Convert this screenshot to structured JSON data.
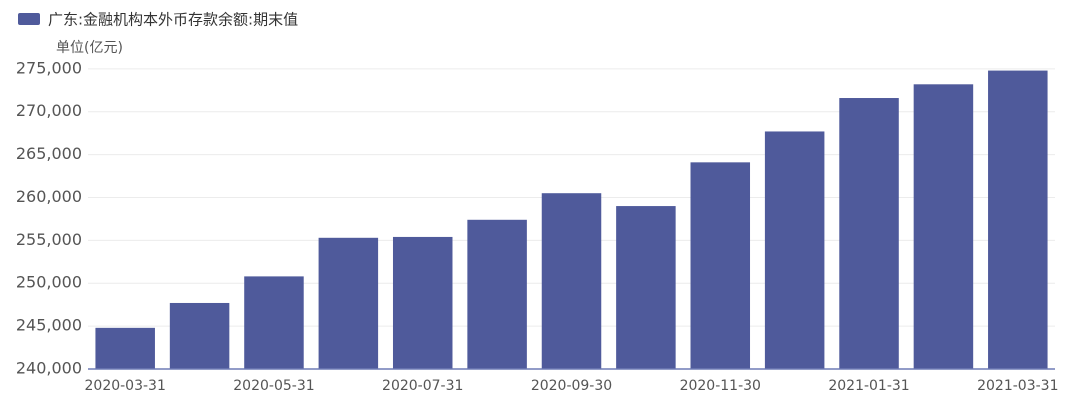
{
  "chart_data": {
    "type": "bar",
    "legend": "广东:金融机构本外币存款余额:期末值",
    "unit": "单位(亿元)",
    "categories": [
      "2020-03-31",
      null,
      "2020-05-31",
      null,
      "2020-07-31",
      null,
      "2020-09-30",
      null,
      "2020-11-30",
      null,
      "2021-01-31",
      null,
      "2021-03-31"
    ],
    "values": [
      244800,
      247700,
      250800,
      255300,
      255400,
      257400,
      260500,
      259000,
      264100,
      267700,
      271600,
      273200,
      274800
    ],
    "color": "#4f5a9b",
    "ylim": [
      240000,
      276500
    ],
    "yticks": [
      {
        "value": 240000,
        "label": "240,000"
      },
      {
        "value": 245000,
        "label": "245,000"
      },
      {
        "value": 250000,
        "label": "250,000"
      },
      {
        "value": 255000,
        "label": "255,000"
      },
      {
        "value": 260000,
        "label": "260,000"
      },
      {
        "value": 265000,
        "label": "265,000"
      },
      {
        "value": 270000,
        "label": "270,000"
      },
      {
        "value": 275000,
        "label": "275,000"
      }
    ],
    "grid": true
  }
}
